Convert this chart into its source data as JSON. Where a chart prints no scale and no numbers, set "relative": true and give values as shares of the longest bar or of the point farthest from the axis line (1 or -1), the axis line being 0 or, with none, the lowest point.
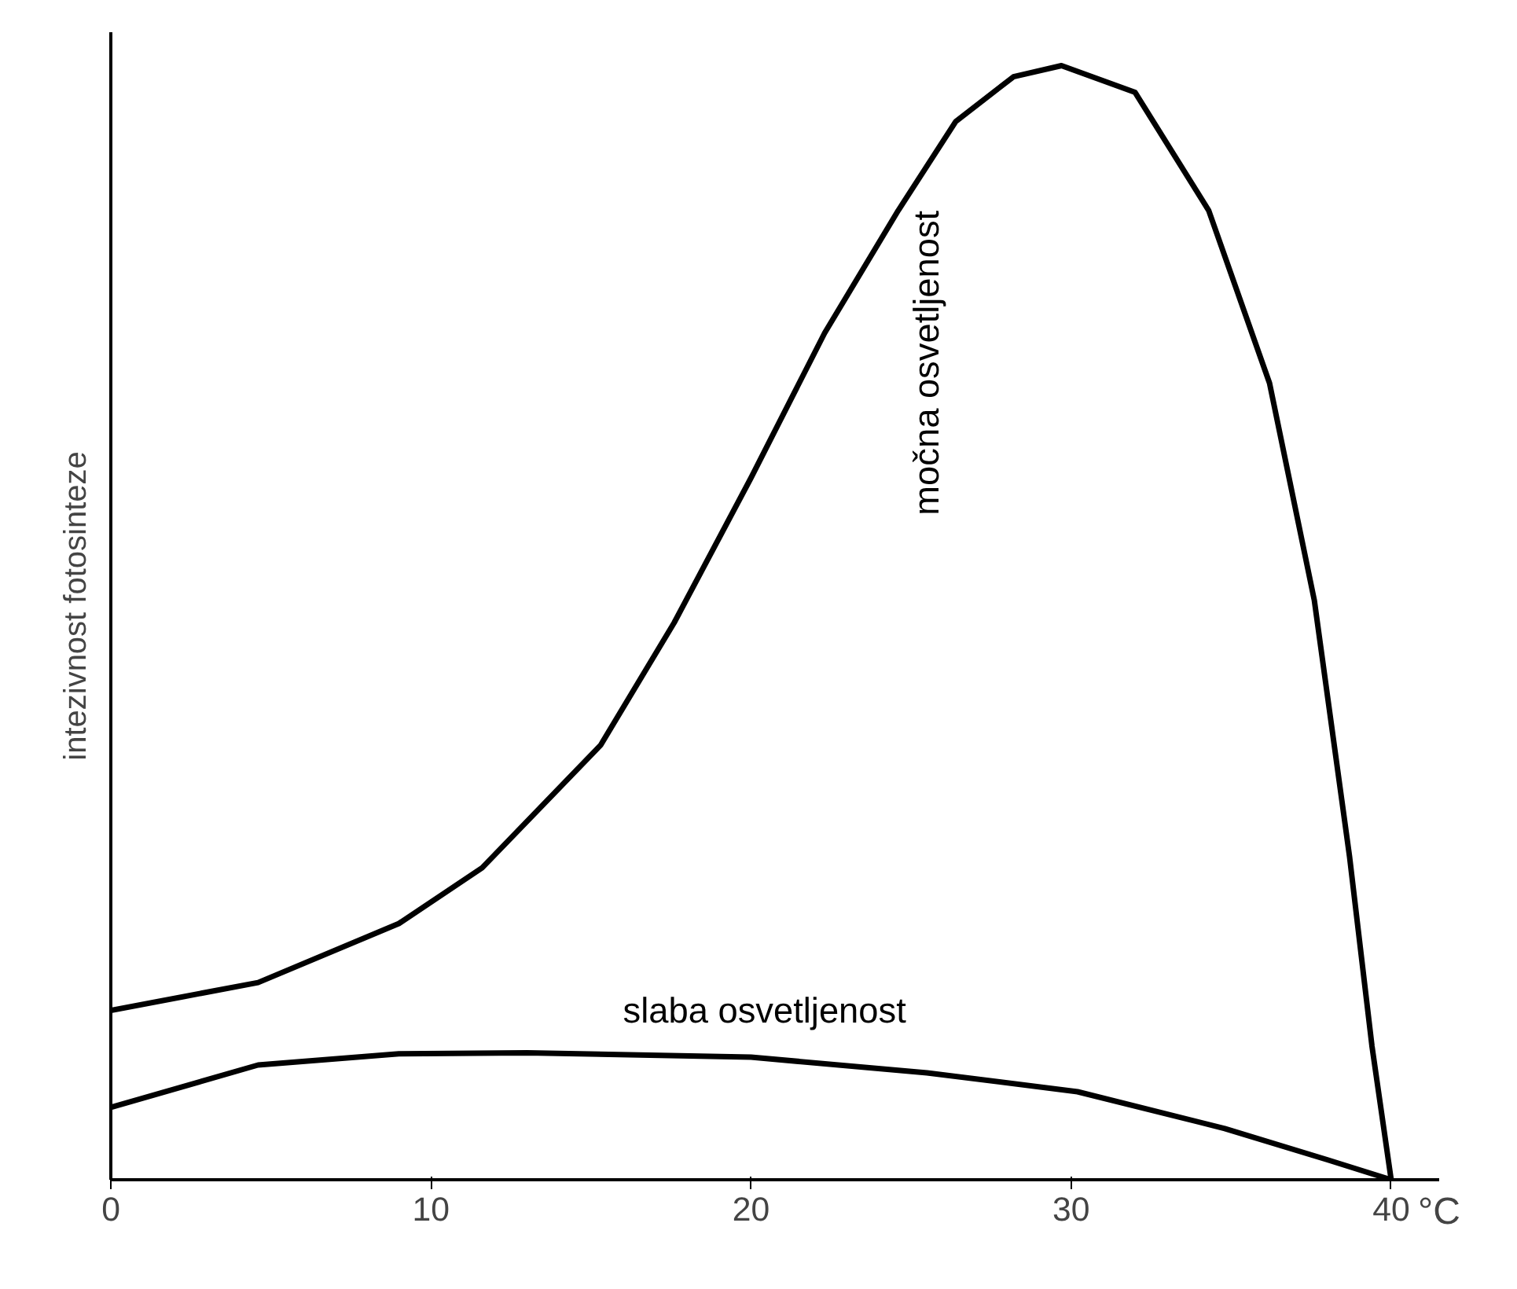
{
  "chart_data": {
    "type": "line",
    "relative": true,
    "xlabel": "°C",
    "ylabel": "intezivnost fotosinteze",
    "xlim": [
      0,
      41.5
    ],
    "xticks": [
      0,
      10,
      20,
      30,
      40
    ],
    "grid": false,
    "marker": "none",
    "line_style": "solid",
    "series": [
      {
        "name": "močna osvetljenost",
        "color": "#000000",
        "x": [
          0,
          4.6,
          9,
          11.6,
          15.3,
          17.6,
          20,
          22.3,
          24.6,
          26.4,
          28.2,
          29.7,
          32,
          34.3,
          36.2,
          37.6,
          38.7,
          39.4,
          40
        ],
        "values": [
          0.152,
          0.177,
          0.23,
          0.28,
          0.39,
          0.5,
          0.63,
          0.76,
          0.87,
          0.95,
          0.99,
          1,
          0.976,
          0.87,
          0.715,
          0.52,
          0.29,
          0.12,
          0
        ]
      },
      {
        "name": "slaba osvetljenost",
        "color": "#000000",
        "x": [
          0,
          4.6,
          9,
          13,
          20,
          25.5,
          30.2,
          34.8,
          38,
          40
        ],
        "values": [
          0.065,
          0.103,
          0.113,
          0.114,
          0.11,
          0.096,
          0.079,
          0.046,
          0.018,
          0
        ]
      }
    ]
  }
}
